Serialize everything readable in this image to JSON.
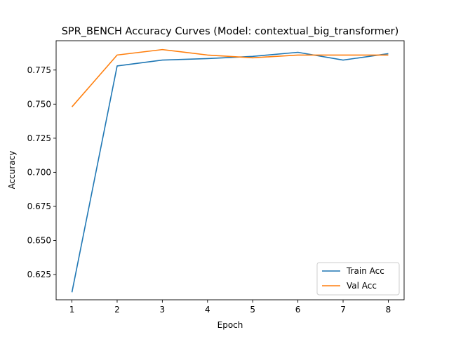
{
  "chart_data": {
    "type": "line",
    "title": "SPR_BENCH Accuracy Curves (Model: contextual_big_transformer)",
    "xlabel": "Epoch",
    "ylabel": "Accuracy",
    "x": [
      1,
      2,
      3,
      4,
      5,
      6,
      7,
      8
    ],
    "xlim": [
      0.65,
      8.35
    ],
    "ylim": [
      0.6065,
      0.7965
    ],
    "xticks": [
      1,
      2,
      3,
      4,
      5,
      6,
      7,
      8
    ],
    "yticks": [
      0.625,
      0.65,
      0.675,
      0.7,
      0.725,
      0.75,
      0.775
    ],
    "ytick_labels": [
      "0.625",
      "0.650",
      "0.675",
      "0.700",
      "0.725",
      "0.750",
      "0.775"
    ],
    "grid": false,
    "legend_position": "lower right",
    "series": [
      {
        "name": "Train Acc",
        "color": "#1f77b4",
        "values": [
          0.612,
          0.778,
          0.7823,
          0.7834,
          0.785,
          0.788,
          0.7823,
          0.787
        ]
      },
      {
        "name": "Val Acc",
        "color": "#ff7f0e",
        "values": [
          0.748,
          0.786,
          0.79,
          0.786,
          0.784,
          0.786,
          0.786,
          0.786
        ]
      }
    ]
  }
}
